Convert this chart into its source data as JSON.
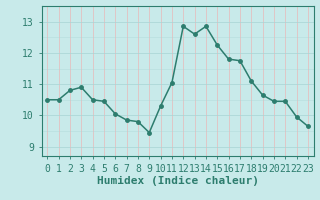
{
  "x": [
    0,
    1,
    2,
    3,
    4,
    5,
    6,
    7,
    8,
    9,
    10,
    11,
    12,
    13,
    14,
    15,
    16,
    17,
    18,
    19,
    20,
    21,
    22,
    23
  ],
  "y": [
    10.5,
    10.5,
    10.8,
    10.9,
    10.5,
    10.45,
    10.05,
    9.85,
    9.8,
    9.45,
    10.3,
    11.05,
    12.85,
    12.6,
    12.85,
    12.25,
    11.8,
    11.75,
    11.1,
    10.65,
    10.45,
    10.45,
    9.95,
    9.65
  ],
  "line_color": "#2d7d6e",
  "marker": "o",
  "marker_size": 2.5,
  "bg_color": "#c8eaea",
  "grid_color_v": "#e8b8b8",
  "grid_color_h": "#a8d4d4",
  "xlabel": "Humidex (Indice chaleur)",
  "xlabel_fontsize": 8,
  "yticks": [
    9,
    10,
    11,
    12,
    13
  ],
  "ylim": [
    8.7,
    13.5
  ],
  "xlim": [
    -0.5,
    23.5
  ],
  "tick_fontsize": 7,
  "line_width": 1.1,
  "spine_color": "#2d7d6e",
  "tick_color": "#2d7d6e",
  "xlabel_color": "#2d7d6e"
}
